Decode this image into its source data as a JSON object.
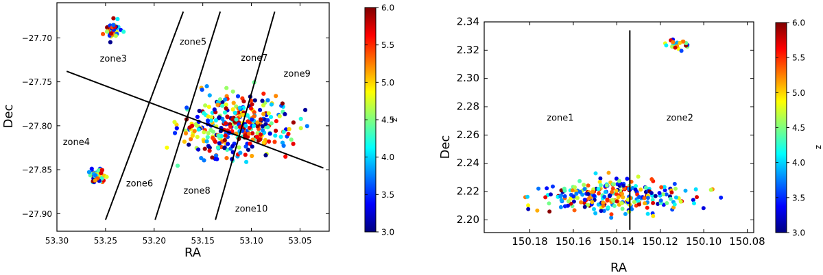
{
  "colorbar": {
    "label": "z",
    "range": [
      3.0,
      6.0
    ],
    "ticks": [
      "3.0",
      "3.5",
      "4.0",
      "4.5",
      "5.0",
      "5.5",
      "6.0"
    ],
    "colormap": "jet",
    "colors": [
      "#00007f",
      "#0000ff",
      "#007fff",
      "#00ffff",
      "#7fff7f",
      "#ffff00",
      "#ff7f00",
      "#ff0000",
      "#7f0000"
    ]
  },
  "chart_data": [
    {
      "type": "scatter",
      "xlabel": "RA",
      "ylabel": "Dec",
      "xlim": [
        53.3,
        53.02
      ],
      "ylim": [
        -27.92,
        -27.66
      ],
      "xticks": [
        "53.30",
        "53.25",
        "53.20",
        "53.15",
        "53.10",
        "53.05"
      ],
      "yticks": [
        "-27.70",
        "-27.75",
        "-27.80",
        "-27.85",
        "-27.90"
      ],
      "clusters": [
        {
          "ra": 53.243,
          "dec": -27.691,
          "sra": 0.007,
          "sdec": 0.008,
          "n": 45
        },
        {
          "ra": 53.259,
          "dec": -27.858,
          "sra": 0.006,
          "sdec": 0.008,
          "n": 55
        },
        {
          "ra": 53.115,
          "dec": -27.8,
          "sra": 0.045,
          "sdec": 0.03,
          "n": 330
        }
      ],
      "lines": [
        {
          "x": [
            53.29,
            53.026
          ],
          "y": [
            -27.738,
            -27.848
          ]
        },
        {
          "x": [
            53.25,
            53.17
          ],
          "y": [
            -27.907,
            -27.67
          ]
        },
        {
          "x": [
            53.199,
            53.132
          ],
          "y": [
            -27.907,
            -27.67
          ]
        },
        {
          "x": [
            53.137,
            53.076
          ],
          "y": [
            -27.907,
            -27.67
          ]
        }
      ],
      "zones": [
        {
          "label": "zone3",
          "ra": 53.242,
          "dec": -27.727
        },
        {
          "label": "zone5",
          "ra": 53.16,
          "dec": -27.708
        },
        {
          "label": "zone7",
          "ra": 53.097,
          "dec": -27.726
        },
        {
          "label": "zone9",
          "ra": 53.053,
          "dec": -27.744
        },
        {
          "label": "zone4",
          "ra": 53.28,
          "dec": -27.822
        },
        {
          "label": "zone6",
          "ra": 53.215,
          "dec": -27.869
        },
        {
          "label": "zone8",
          "ra": 53.156,
          "dec": -27.877
        },
        {
          "label": "zone10",
          "ra": 53.1,
          "dec": -27.898
        }
      ]
    },
    {
      "type": "scatter",
      "xlabel": "RA",
      "ylabel": "Dec",
      "xlim": [
        150.201,
        150.077
      ],
      "ylim": [
        2.191,
        2.34
      ],
      "xticks": [
        "150.18",
        "150.16",
        "150.14",
        "150.12",
        "150.10",
        "150.08"
      ],
      "yticks": [
        "2.20",
        "2.22",
        "2.24",
        "2.26",
        "2.28",
        "2.30",
        "2.32",
        "2.34"
      ],
      "clusters": [
        {
          "ra": 150.113,
          "dec": 2.325,
          "sra": 0.006,
          "sdec": 0.004,
          "n": 25
        },
        {
          "ra": 150.14,
          "dec": 2.217,
          "sra": 0.027,
          "sdec": 0.01,
          "n": 270
        }
      ],
      "lines": [
        {
          "x": [
            150.134,
            150.134
          ],
          "y": [
            2.193,
            2.334
          ]
        }
      ],
      "zones": [
        {
          "label": "zone1",
          "ra": 150.166,
          "dec": 2.27
        },
        {
          "label": "zone2",
          "ra": 150.111,
          "dec": 2.27
        }
      ]
    }
  ]
}
